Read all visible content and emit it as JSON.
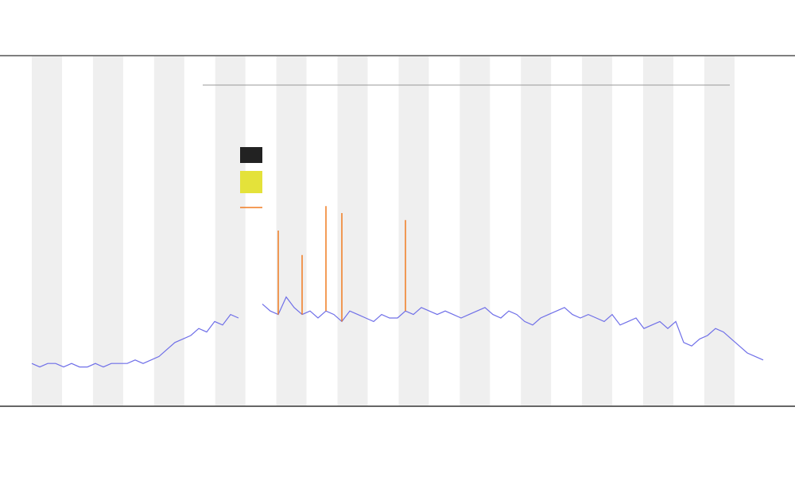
{
  "chart_data": {
    "type": "line",
    "ylim": [
      0,
      100
    ],
    "grid": false,
    "series": [
      {
        "color": "#6f6fe8",
        "values": [
          12,
          11,
          12,
          12,
          11,
          12,
          11,
          11,
          12,
          11,
          12,
          12,
          12,
          13,
          12,
          13,
          14,
          16,
          18,
          19,
          20,
          22,
          21,
          24,
          23,
          26,
          25,
          null,
          null,
          29,
          27,
          26,
          31,
          28,
          26,
          27,
          25,
          27,
          26,
          24,
          27,
          26,
          25,
          24,
          26,
          25,
          25,
          27,
          26,
          28,
          27,
          26,
          27,
          26,
          25,
          26,
          27,
          28,
          26,
          25,
          27,
          26,
          24,
          23,
          25,
          26,
          27,
          28,
          26,
          25,
          26,
          25,
          24,
          26,
          23,
          24,
          25,
          22,
          23,
          24,
          22,
          24,
          18,
          17,
          19,
          20,
          22,
          21,
          19,
          17,
          15,
          14,
          13
        ]
      },
      {
        "color": "#f07b20",
        "values": [
          null,
          null,
          null,
          null,
          null,
          null,
          null,
          null,
          null,
          null,
          null,
          null,
          null,
          null,
          null,
          null,
          null,
          null,
          null,
          null,
          null,
          null,
          null,
          null,
          null,
          null,
          null,
          null,
          null,
          null,
          null,
          50,
          null,
          null,
          43,
          null,
          null,
          57,
          null,
          55,
          null,
          null,
          null,
          null,
          null,
          null,
          null,
          53,
          null,
          null,
          null,
          null,
          null,
          null,
          null,
          null,
          null,
          null,
          null,
          null,
          null,
          null,
          null,
          null,
          null,
          null,
          null,
          null,
          null,
          null,
          null,
          null,
          null,
          null,
          null,
          null,
          null,
          null,
          null,
          null,
          null,
          null,
          null,
          null,
          null,
          null,
          null,
          null,
          null,
          null,
          null,
          null,
          null
        ]
      }
    ]
  }
}
